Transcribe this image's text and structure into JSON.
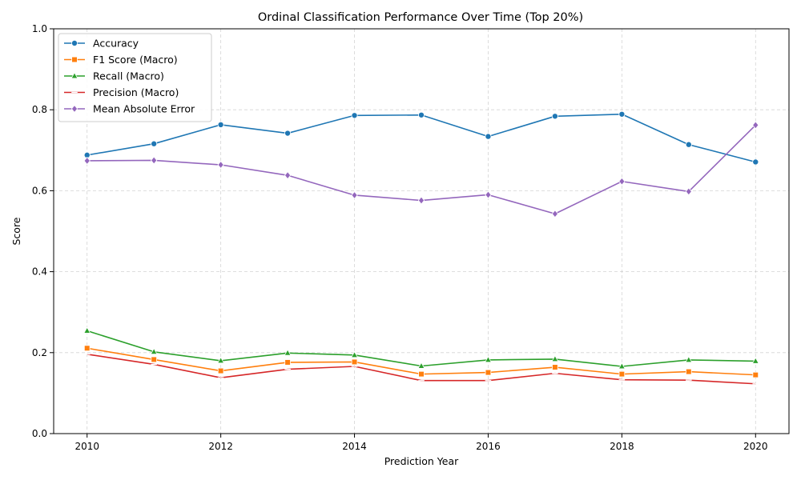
{
  "chart_data": {
    "type": "line",
    "title": "Ordinal Classification Performance Over Time (Top 20%)",
    "xlabel": "Prediction Year",
    "ylabel": "Score",
    "x": [
      2010,
      2011,
      2012,
      2013,
      2014,
      2015,
      2016,
      2017,
      2018,
      2019,
      2020
    ],
    "xlim": [
      2009.5,
      2020.5
    ],
    "ylim": [
      0,
      1
    ],
    "xticks": [
      2010,
      2012,
      2014,
      2016,
      2018,
      2020
    ],
    "yticks": [
      0.0,
      0.2,
      0.4,
      0.6,
      0.8,
      1.0
    ],
    "ytick_labels": [
      "0.0",
      "0.2",
      "0.4",
      "0.6",
      "0.8",
      "1.0"
    ],
    "grid": true,
    "legend_position": "top-left",
    "series": [
      {
        "name": "Accuracy",
        "color": "#1f77b4",
        "marker": "circle",
        "values": [
          0.688,
          0.716,
          0.763,
          0.742,
          0.786,
          0.787,
          0.734,
          0.784,
          0.789,
          0.714,
          0.671
        ]
      },
      {
        "name": "F1 Score (Macro)",
        "color": "#ff7f0e",
        "marker": "square",
        "values": [
          0.211,
          0.183,
          0.155,
          0.176,
          0.177,
          0.147,
          0.151,
          0.164,
          0.147,
          0.153,
          0.145
        ]
      },
      {
        "name": "Recall (Macro)",
        "color": "#2ca02c",
        "marker": "triangle",
        "values": [
          0.254,
          0.202,
          0.18,
          0.199,
          0.194,
          0.167,
          0.182,
          0.184,
          0.166,
          0.182,
          0.179
        ]
      },
      {
        "name": "Precision (Macro)",
        "color": "#d62728",
        "marker": "line",
        "values": [
          0.196,
          0.171,
          0.138,
          0.159,
          0.166,
          0.131,
          0.131,
          0.149,
          0.133,
          0.132,
          0.123
        ]
      },
      {
        "name": "Mean Absolute Error",
        "color": "#9467bd",
        "marker": "diamond",
        "values": [
          0.674,
          0.675,
          0.664,
          0.638,
          0.589,
          0.576,
          0.59,
          0.543,
          0.623,
          0.598,
          0.762
        ]
      }
    ]
  }
}
